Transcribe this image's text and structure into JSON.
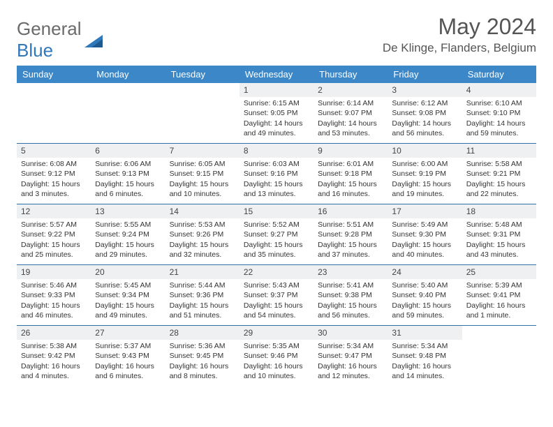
{
  "logo": {
    "text1": "General",
    "text2": "Blue"
  },
  "title": "May 2024",
  "location": "De Klinge, Flanders, Belgium",
  "colors": {
    "header_bg": "#3b87c8",
    "header_text": "#ffffff",
    "daynum_bg": "#eef0f2",
    "week_border": "#2f6ea8",
    "logo_gray": "#6a6a6a",
    "logo_blue": "#2f78bb"
  },
  "day_headers": [
    "Sunday",
    "Monday",
    "Tuesday",
    "Wednesday",
    "Thursday",
    "Friday",
    "Saturday"
  ],
  "weeks": [
    [
      {
        "n": "",
        "sr": "",
        "ss": "",
        "dl": ""
      },
      {
        "n": "",
        "sr": "",
        "ss": "",
        "dl": ""
      },
      {
        "n": "",
        "sr": "",
        "ss": "",
        "dl": ""
      },
      {
        "n": "1",
        "sr": "Sunrise: 6:15 AM",
        "ss": "Sunset: 9:05 PM",
        "dl": "Daylight: 14 hours and 49 minutes."
      },
      {
        "n": "2",
        "sr": "Sunrise: 6:14 AM",
        "ss": "Sunset: 9:07 PM",
        "dl": "Daylight: 14 hours and 53 minutes."
      },
      {
        "n": "3",
        "sr": "Sunrise: 6:12 AM",
        "ss": "Sunset: 9:08 PM",
        "dl": "Daylight: 14 hours and 56 minutes."
      },
      {
        "n": "4",
        "sr": "Sunrise: 6:10 AM",
        "ss": "Sunset: 9:10 PM",
        "dl": "Daylight: 14 hours and 59 minutes."
      }
    ],
    [
      {
        "n": "5",
        "sr": "Sunrise: 6:08 AM",
        "ss": "Sunset: 9:12 PM",
        "dl": "Daylight: 15 hours and 3 minutes."
      },
      {
        "n": "6",
        "sr": "Sunrise: 6:06 AM",
        "ss": "Sunset: 9:13 PM",
        "dl": "Daylight: 15 hours and 6 minutes."
      },
      {
        "n": "7",
        "sr": "Sunrise: 6:05 AM",
        "ss": "Sunset: 9:15 PM",
        "dl": "Daylight: 15 hours and 10 minutes."
      },
      {
        "n": "8",
        "sr": "Sunrise: 6:03 AM",
        "ss": "Sunset: 9:16 PM",
        "dl": "Daylight: 15 hours and 13 minutes."
      },
      {
        "n": "9",
        "sr": "Sunrise: 6:01 AM",
        "ss": "Sunset: 9:18 PM",
        "dl": "Daylight: 15 hours and 16 minutes."
      },
      {
        "n": "10",
        "sr": "Sunrise: 6:00 AM",
        "ss": "Sunset: 9:19 PM",
        "dl": "Daylight: 15 hours and 19 minutes."
      },
      {
        "n": "11",
        "sr": "Sunrise: 5:58 AM",
        "ss": "Sunset: 9:21 PM",
        "dl": "Daylight: 15 hours and 22 minutes."
      }
    ],
    [
      {
        "n": "12",
        "sr": "Sunrise: 5:57 AM",
        "ss": "Sunset: 9:22 PM",
        "dl": "Daylight: 15 hours and 25 minutes."
      },
      {
        "n": "13",
        "sr": "Sunrise: 5:55 AM",
        "ss": "Sunset: 9:24 PM",
        "dl": "Daylight: 15 hours and 29 minutes."
      },
      {
        "n": "14",
        "sr": "Sunrise: 5:53 AM",
        "ss": "Sunset: 9:26 PM",
        "dl": "Daylight: 15 hours and 32 minutes."
      },
      {
        "n": "15",
        "sr": "Sunrise: 5:52 AM",
        "ss": "Sunset: 9:27 PM",
        "dl": "Daylight: 15 hours and 35 minutes."
      },
      {
        "n": "16",
        "sr": "Sunrise: 5:51 AM",
        "ss": "Sunset: 9:28 PM",
        "dl": "Daylight: 15 hours and 37 minutes."
      },
      {
        "n": "17",
        "sr": "Sunrise: 5:49 AM",
        "ss": "Sunset: 9:30 PM",
        "dl": "Daylight: 15 hours and 40 minutes."
      },
      {
        "n": "18",
        "sr": "Sunrise: 5:48 AM",
        "ss": "Sunset: 9:31 PM",
        "dl": "Daylight: 15 hours and 43 minutes."
      }
    ],
    [
      {
        "n": "19",
        "sr": "Sunrise: 5:46 AM",
        "ss": "Sunset: 9:33 PM",
        "dl": "Daylight: 15 hours and 46 minutes."
      },
      {
        "n": "20",
        "sr": "Sunrise: 5:45 AM",
        "ss": "Sunset: 9:34 PM",
        "dl": "Daylight: 15 hours and 49 minutes."
      },
      {
        "n": "21",
        "sr": "Sunrise: 5:44 AM",
        "ss": "Sunset: 9:36 PM",
        "dl": "Daylight: 15 hours and 51 minutes."
      },
      {
        "n": "22",
        "sr": "Sunrise: 5:43 AM",
        "ss": "Sunset: 9:37 PM",
        "dl": "Daylight: 15 hours and 54 minutes."
      },
      {
        "n": "23",
        "sr": "Sunrise: 5:41 AM",
        "ss": "Sunset: 9:38 PM",
        "dl": "Daylight: 15 hours and 56 minutes."
      },
      {
        "n": "24",
        "sr": "Sunrise: 5:40 AM",
        "ss": "Sunset: 9:40 PM",
        "dl": "Daylight: 15 hours and 59 minutes."
      },
      {
        "n": "25",
        "sr": "Sunrise: 5:39 AM",
        "ss": "Sunset: 9:41 PM",
        "dl": "Daylight: 16 hours and 1 minute."
      }
    ],
    [
      {
        "n": "26",
        "sr": "Sunrise: 5:38 AM",
        "ss": "Sunset: 9:42 PM",
        "dl": "Daylight: 16 hours and 4 minutes."
      },
      {
        "n": "27",
        "sr": "Sunrise: 5:37 AM",
        "ss": "Sunset: 9:43 PM",
        "dl": "Daylight: 16 hours and 6 minutes."
      },
      {
        "n": "28",
        "sr": "Sunrise: 5:36 AM",
        "ss": "Sunset: 9:45 PM",
        "dl": "Daylight: 16 hours and 8 minutes."
      },
      {
        "n": "29",
        "sr": "Sunrise: 5:35 AM",
        "ss": "Sunset: 9:46 PM",
        "dl": "Daylight: 16 hours and 10 minutes."
      },
      {
        "n": "30",
        "sr": "Sunrise: 5:34 AM",
        "ss": "Sunset: 9:47 PM",
        "dl": "Daylight: 16 hours and 12 minutes."
      },
      {
        "n": "31",
        "sr": "Sunrise: 5:34 AM",
        "ss": "Sunset: 9:48 PM",
        "dl": "Daylight: 16 hours and 14 minutes."
      },
      {
        "n": "",
        "sr": "",
        "ss": "",
        "dl": ""
      }
    ]
  ]
}
